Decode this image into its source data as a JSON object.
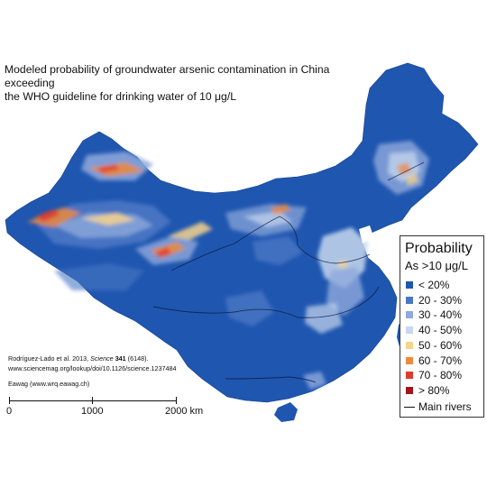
{
  "title": {
    "line1": "Modeled probability of groundwater arsenic contamination in China exceeding",
    "line2": "the WHO guideline for drinking water of 10 μg/L"
  },
  "credits": {
    "citation_prefix": "Rodríguez-Lado et al. 2013, ",
    "citation_journal": "Science",
    "citation_volume": "341",
    "citation_issue": " (6148).",
    "doi_url": "www.sciencemag.org/lookup/doi/10.1126/science.1237484",
    "org": "Eawag (www.wrq.eawag.ch)"
  },
  "scale_bar": {
    "labels": [
      "0",
      "1000",
      "2000  km"
    ]
  },
  "legend": {
    "title": "Probability",
    "subtitle": "As >10 μg/L",
    "classes": [
      {
        "label": "< 20%",
        "color": "#1f56b0"
      },
      {
        "label": "20 - 30%",
        "color": "#4a77c4"
      },
      {
        "label": "30 - 40%",
        "color": "#8ea9dc"
      },
      {
        "label": "40 - 50%",
        "color": "#c7d7ee"
      },
      {
        "label": "50 - 60%",
        "color": "#f6d48a"
      },
      {
        "label": "60 - 70%",
        "color": "#ef8a3a"
      },
      {
        "label": "70 - 80%",
        "color": "#e03c2c"
      },
      {
        "label": "> 80%",
        "color": "#a3151b"
      }
    ],
    "river_label": "Main rivers"
  }
}
